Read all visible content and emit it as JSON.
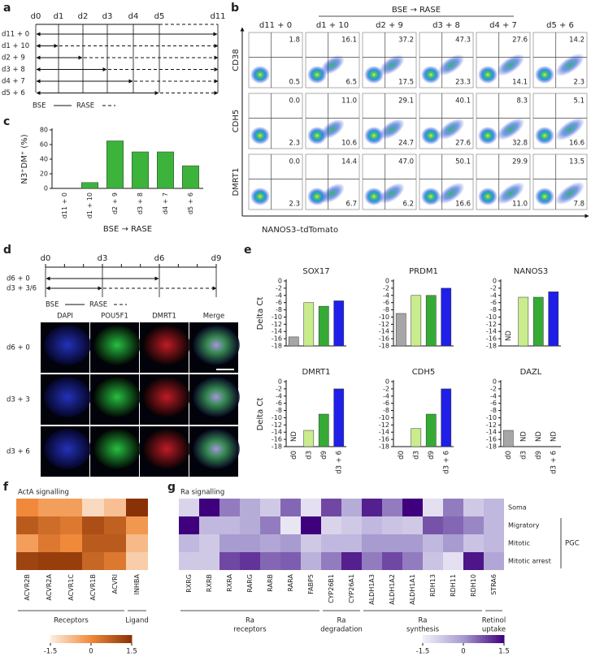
{
  "panel_labels": [
    "a",
    "b",
    "c",
    "d",
    "e",
    "f",
    "g"
  ],
  "panel_a": {
    "days": [
      "d0",
      "d1",
      "d2",
      "d3",
      "d4",
      "d5",
      "d11"
    ],
    "rows": [
      "d11 + 0",
      "d1 + 10",
      "d2 + 9",
      "d3 + 8",
      "d4 + 7",
      "d5 + 6"
    ],
    "legend": [
      "BSE",
      "RASE"
    ]
  },
  "panel_b": {
    "title": "BSE → RASE",
    "columns": [
      "d11 + 0",
      "d1 + 10",
      "d2 + 9",
      "d3 + 8",
      "d4 + 7",
      "d5 + 6"
    ],
    "rows": [
      "CD38",
      "CDH5",
      "DMRT1"
    ],
    "x_label": "NANOS3–tdTomato",
    "quadrants": [
      [
        [
          "1.8",
          "0.5"
        ],
        [
          "16.1",
          "6.5"
        ],
        [
          "37.2",
          "17.5"
        ],
        [
          "47.3",
          "23.3"
        ],
        [
          "27.6",
          "14.1"
        ],
        [
          "14.2",
          "2.3"
        ]
      ],
      [
        [
          "0.0",
          "2.3"
        ],
        [
          "11.0",
          "10.6"
        ],
        [
          "29.1",
          "24.7"
        ],
        [
          "40.1",
          "27.6"
        ],
        [
          "8.3",
          "32.8"
        ],
        [
          "5.1",
          "16.6"
        ]
      ],
      [
        [
          "0.0",
          "2.3"
        ],
        [
          "14.4",
          "6.7"
        ],
        [
          "47.0",
          "6.2"
        ],
        [
          "50.1",
          "16.6"
        ],
        [
          "29.9",
          "11.0"
        ],
        [
          "13.5",
          "7.8"
        ]
      ]
    ]
  },
  "chart_data": [
    {
      "type": "bar",
      "ylabel": "N3⁺DM⁺ (%)",
      "xlabel": "BSE → RASE",
      "categories": [
        "d11 + 0",
        "d1 + 10",
        "d2 + 9",
        "d3 + 8",
        "d4 + 7",
        "d5 + 6"
      ],
      "values": [
        0,
        8,
        65,
        50,
        50,
        31
      ],
      "color": "#3cb43c",
      "ylim": [
        0,
        80
      ],
      "yticks": [
        0,
        20,
        40,
        60,
        80
      ]
    },
    {
      "type": "bar",
      "title": "SOX17",
      "ylabel": "Delta Ct",
      "values": [
        -15.5,
        -6,
        -7,
        -5.5
      ],
      "colors": [
        "#a6a6a6",
        "#c9ec8c",
        "#35ab35",
        "#1f1fe8"
      ],
      "ylim": [
        -18,
        0
      ],
      "yticks": [
        -18,
        -16,
        -14,
        -12,
        -10,
        -8,
        -6,
        -4,
        -2,
        0
      ]
    },
    {
      "type": "bar",
      "title": "PRDM1",
      "values": [
        -9,
        -4,
        -4,
        -2
      ],
      "colors": [
        "#a6a6a6",
        "#c9ec8c",
        "#35ab35",
        "#1f1fe8"
      ],
      "ylim": [
        -18,
        0
      ],
      "yticks": [
        -18,
        -16,
        -14,
        -12,
        -10,
        -8,
        -6,
        -4,
        -2,
        0
      ]
    },
    {
      "type": "bar",
      "title": "NANOS3",
      "values": [
        null,
        -4.5,
        -4.5,
        -3
      ],
      "value_labels": [
        "ND",
        null,
        null,
        null
      ],
      "colors": [
        "#a6a6a6",
        "#c9ec8c",
        "#35ab35",
        "#1f1fe8"
      ],
      "ylim": [
        -18,
        0
      ],
      "yticks": [
        -18,
        -16,
        -14,
        -12,
        -10,
        -8,
        -6,
        -4,
        -2,
        0
      ]
    },
    {
      "type": "bar",
      "title": "DMRT1",
      "ylabel": "Delta Ct",
      "categories": [
        "d0",
        "d3",
        "d9",
        "d3 + 6"
      ],
      "values": [
        null,
        -13.5,
        -9,
        -2
      ],
      "value_labels": [
        "ND",
        null,
        null,
        null
      ],
      "colors": [
        "#a6a6a6",
        "#c9ec8c",
        "#35ab35",
        "#1f1fe8"
      ],
      "ylim": [
        -18,
        0
      ],
      "yticks": [
        -18,
        -16,
        -14,
        -12,
        -10,
        -8,
        -6,
        -4,
        -2,
        0
      ]
    },
    {
      "type": "bar",
      "title": "CDH5",
      "categories": [
        "d0",
        "d3",
        "d9",
        "d3 + 6"
      ],
      "values": [
        null,
        -13,
        -9,
        -2
      ],
      "colors": [
        "#a6a6a6",
        "#c9ec8c",
        "#35ab35",
        "#1f1fe8"
      ],
      "ylim": [
        -18,
        0
      ],
      "yticks": [
        -18,
        -16,
        -14,
        -12,
        -10,
        -8,
        -6,
        -4,
        -2,
        0
      ]
    },
    {
      "type": "bar",
      "title": "DAZL",
      "categories": [
        "d0",
        "d3",
        "d9",
        "d3 + 6"
      ],
      "values": [
        -13.5,
        null,
        null,
        null
      ],
      "value_labels": [
        null,
        "ND",
        "ND",
        "ND"
      ],
      "colors": [
        "#a6a6a6",
        "#c9ec8c",
        "#35ab35",
        "#1f1fe8"
      ],
      "ylim": [
        -18,
        0
      ],
      "yticks": [
        -18,
        -16,
        -14,
        -12,
        -10,
        -8,
        -6,
        -4,
        -2,
        0
      ]
    }
  ],
  "panel_d": {
    "days": [
      "d0",
      "d3",
      "d6",
      "d9"
    ],
    "rows": [
      "d6 + 0",
      "d3 + 3/6"
    ],
    "legend": [
      "BSE",
      "RASE"
    ],
    "stains": [
      "DAPI",
      "POU5F1",
      "DMRT1",
      "Merge"
    ],
    "image_rows": [
      "d6 + 0",
      "d3 + 3",
      "d3 + 6"
    ]
  },
  "panel_f": {
    "title": "ActA signalling",
    "columns": [
      "ACVR2B",
      "ACVR2A",
      "ACVR1C",
      "ACVR1B",
      "ACVRI",
      "INHBA"
    ],
    "groups": [
      "Receptors",
      "Ligand"
    ],
    "values": [
      [
        0.0,
        -0.3,
        -0.3,
        -1.2,
        -0.8,
        1.5
      ],
      [
        0.8,
        0.5,
        0.3,
        1.0,
        0.7,
        -0.2
      ],
      [
        -0.3,
        0.3,
        0.0,
        0.8,
        0.8,
        -0.7
      ],
      [
        1.2,
        1.3,
        1.3,
        0.6,
        0.3,
        -1.0
      ]
    ],
    "colormap": [
      "#fdeee0",
      "#f08a3a",
      "#8a3206"
    ],
    "clim": [
      -1.5,
      1.5
    ],
    "colorbar_ticks": [
      -1.5,
      0,
      1.5
    ]
  },
  "panel_g": {
    "title": "Ra signalling",
    "columns": [
      "RXRG",
      "RXRB",
      "RXRA",
      "RARG",
      "RARB",
      "RARA",
      "FABP5",
      "CYP26B1",
      "CYP26A1",
      "ALDH1A3",
      "ALDH1A2",
      "ALDH1A1",
      "RDH13",
      "RDH11",
      "RDH10",
      "STRA6"
    ],
    "rows": [
      "Soma",
      "Migratory",
      "Mitotic",
      "Mitotic arrest"
    ],
    "row_group": "PGC",
    "groups": [
      [
        "Ra",
        "receptors"
      ],
      [
        "Ra",
        "degradation"
      ],
      [
        "Ra",
        "synthesis"
      ],
      [
        "Retinol",
        "uptake"
      ]
    ],
    "values": [
      [
        -1.0,
        1.5,
        0.3,
        -0.3,
        -0.8,
        0.5,
        -1.2,
        0.8,
        -0.3,
        1.2,
        0.3,
        1.5,
        -1.2,
        0.3,
        -0.8,
        -0.5
      ],
      [
        1.5,
        -0.5,
        -0.5,
        -0.3,
        0.3,
        -1.3,
        1.5,
        -1.0,
        -0.8,
        -0.5,
        -0.7,
        -0.8,
        0.7,
        0.5,
        0.2,
        -0.5
      ],
      [
        -0.5,
        -0.8,
        0.0,
        0.0,
        -0.2,
        0.0,
        -0.8,
        -0.5,
        -0.5,
        0.0,
        0.0,
        0.0,
        -0.5,
        0.0,
        -0.7,
        -0.5
      ],
      [
        -0.8,
        -0.8,
        0.8,
        1.0,
        0.5,
        0.6,
        -0.4,
        0.3,
        1.2,
        0.3,
        0.8,
        0.3,
        -0.7,
        -1.2,
        1.3,
        -0.2
      ]
    ],
    "colormap": [
      "#f3f1f9",
      "#a79bd0",
      "#3f007d"
    ],
    "clim": [
      -1.5,
      1.5
    ],
    "colorbar_ticks": [
      -1.5,
      0,
      1.5
    ]
  }
}
